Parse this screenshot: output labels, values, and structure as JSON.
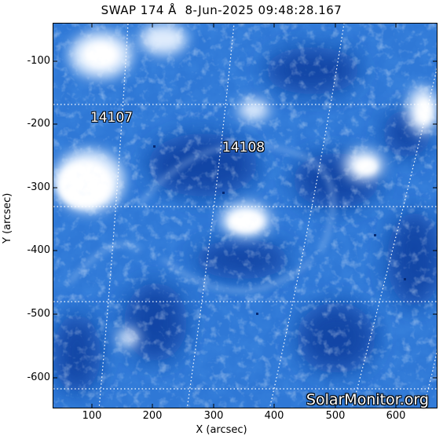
{
  "title": "SWAP 174 Å  8-Jun-2025 09:48:28.167",
  "axes": {
    "xlabel": "X (arcsec)",
    "ylabel": "Y (arcsec)",
    "xticks": [
      "100",
      "200",
      "300",
      "400",
      "500",
      "600"
    ],
    "yticks": [
      "-100",
      "-200",
      "-300",
      "-400",
      "-500",
      "-600"
    ]
  },
  "regions": [
    {
      "label": "14107"
    },
    {
      "label": "14108"
    }
  ],
  "credit": "SolarMonitor.org",
  "colors": {
    "deep": "#0a3ea8",
    "mid": "#2a73d8",
    "light": "#8cbcf2",
    "bright": "#ffffff"
  }
}
